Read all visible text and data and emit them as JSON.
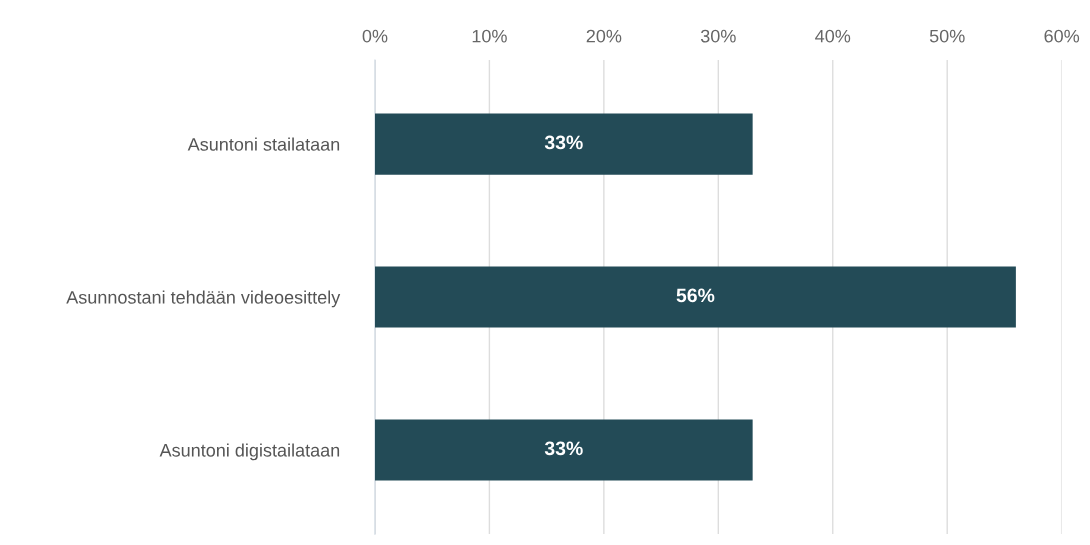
{
  "chart_data": {
    "type": "bar",
    "orientation": "horizontal",
    "categories": [
      "Asuntoni stailataan",
      "Asunnostani tehdään videoesittely",
      "Asuntoni digistailataan"
    ],
    "values": [
      33,
      56,
      33
    ],
    "value_labels": [
      "33%",
      "56%",
      "33%"
    ],
    "color": "#234b57",
    "xlim": [
      0,
      60
    ],
    "xticks": [
      {
        "value": 0,
        "label": "0%"
      },
      {
        "value": 10,
        "label": "10%"
      },
      {
        "value": 20,
        "label": "20%"
      },
      {
        "value": 30,
        "label": "30%"
      },
      {
        "value": 40,
        "label": "40%"
      },
      {
        "value": 50,
        "label": "50%"
      },
      {
        "value": 60,
        "label": "60%"
      }
    ],
    "grid": "x",
    "legend": false
  }
}
